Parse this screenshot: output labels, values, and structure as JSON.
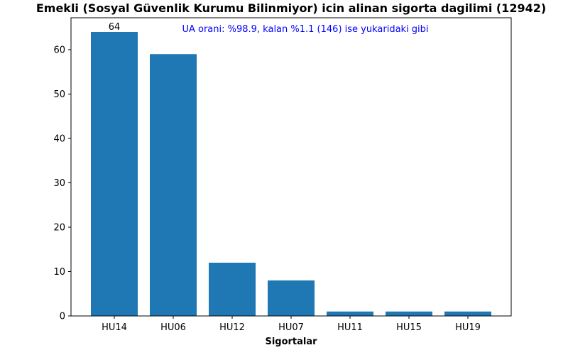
{
  "chart_data": {
    "type": "bar",
    "title": "Emekli (Sosyal Güvenlik Kurumu Bilinmiyor) icin alinan sigorta dagilimi (12942)",
    "xlabel": "Sigortalar",
    "ylabel": "",
    "categories": [
      "HU14",
      "HU06",
      "HU12",
      "HU07",
      "HU11",
      "HU15",
      "HU19"
    ],
    "values": [
      64,
      59,
      12,
      8,
      1,
      1,
      1
    ],
    "data_labels": [
      "64",
      "",
      "",
      "",
      "",
      "",
      ""
    ],
    "ylim": [
      0,
      67.2
    ],
    "yticks": [
      0,
      10,
      20,
      30,
      40,
      50,
      60
    ],
    "annotation": "UA orani: %98.9, kalan %1.1 (146) ise yukaridaki gibi",
    "annotation_color": "#0000ff",
    "bar_color": "#1f77b4",
    "grid": false,
    "legend": "none"
  }
}
